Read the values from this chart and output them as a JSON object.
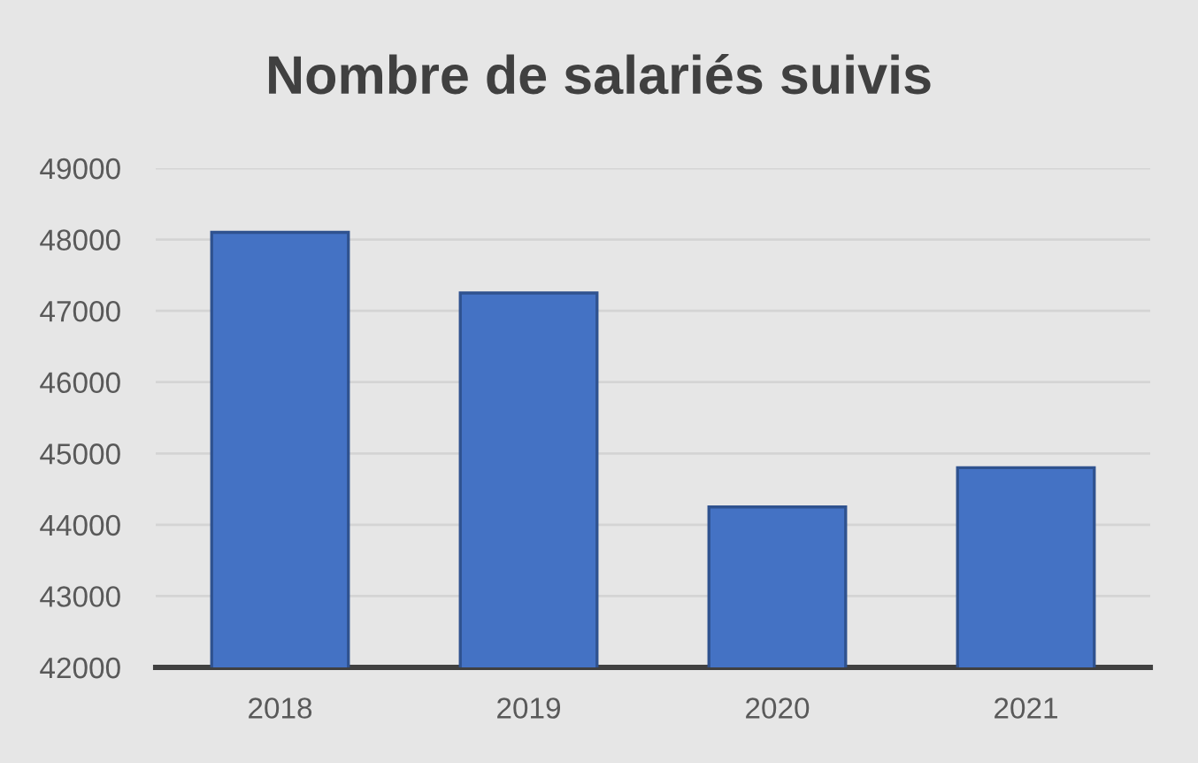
{
  "chart_data": {
    "type": "bar",
    "title": "Nombre de salariés suivis",
    "categories": [
      "2018",
      "2019",
      "2020",
      "2021"
    ],
    "values": [
      48100,
      47250,
      44250,
      44800
    ],
    "color": "#4472c4",
    "ylim": [
      42000,
      49000
    ],
    "yticks": [
      42000,
      43000,
      44000,
      45000,
      46000,
      47000,
      48000,
      49000
    ],
    "grid": "y"
  }
}
